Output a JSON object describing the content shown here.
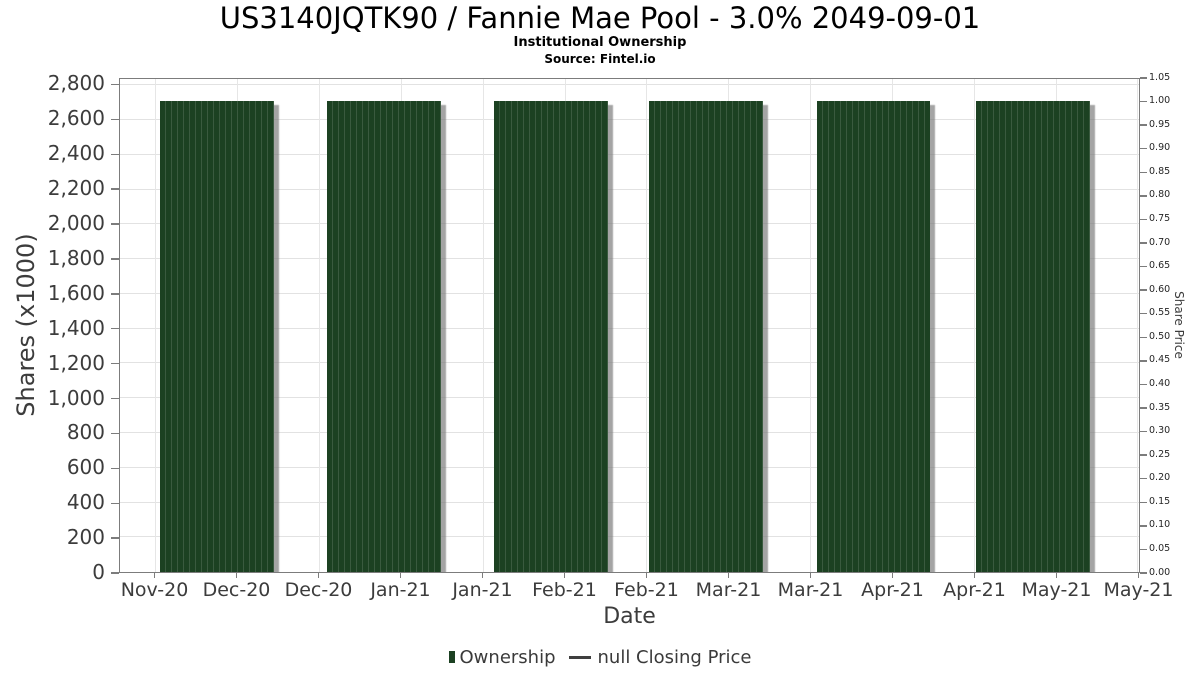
{
  "chart_data": {
    "type": "bar",
    "title": "US3140JQTK90 / Fannie Mae Pool - 3.0% 2049-09-01",
    "subtitle": "Institutional Ownership",
    "source": "Source: Fintel.io",
    "xlabel": "Date",
    "ylabel_left": "Shares (x1000)",
    "ylabel_right": "Share Price",
    "x_tick_labels": [
      "Nov-20",
      "Dec-20",
      "Dec-20",
      "Jan-21",
      "Jan-21",
      "Feb-21",
      "Feb-21",
      "Mar-21",
      "Mar-21",
      "Apr-21",
      "Apr-21",
      "May-21",
      "May-21"
    ],
    "left_axis": {
      "label": "Shares (x1000)",
      "min": 0,
      "max": 2800,
      "step": 200,
      "ylim": [
        0,
        2837
      ]
    },
    "right_axis": {
      "label": "Share Price",
      "min": 0.0,
      "max": 1.05,
      "step": 0.05,
      "ylim": [
        0,
        1.05
      ]
    },
    "series": [
      {
        "name": "Ownership",
        "type": "bar",
        "unit": "shares x1000",
        "values": [
          2713,
          2713,
          2713,
          2713,
          2713,
          2713
        ]
      },
      {
        "name": "null Closing Price",
        "type": "line",
        "values": []
      }
    ],
    "legend": [
      {
        "label": "Ownership",
        "swatch": "bar"
      },
      {
        "label": "null Closing Price",
        "swatch": "dash"
      }
    ],
    "grid": "on",
    "legend_position": "bottom-center",
    "colors": {
      "bar": "#1c4122",
      "bar_stripe": "#3a5a3f",
      "bar_shadow": "#7d7d7d",
      "gridline": "#e2e2e2",
      "spine": "#7c7c7c",
      "tick_label": "#3c3c3c",
      "title": "#000000",
      "legend_dash": "#3f3f3f"
    }
  }
}
